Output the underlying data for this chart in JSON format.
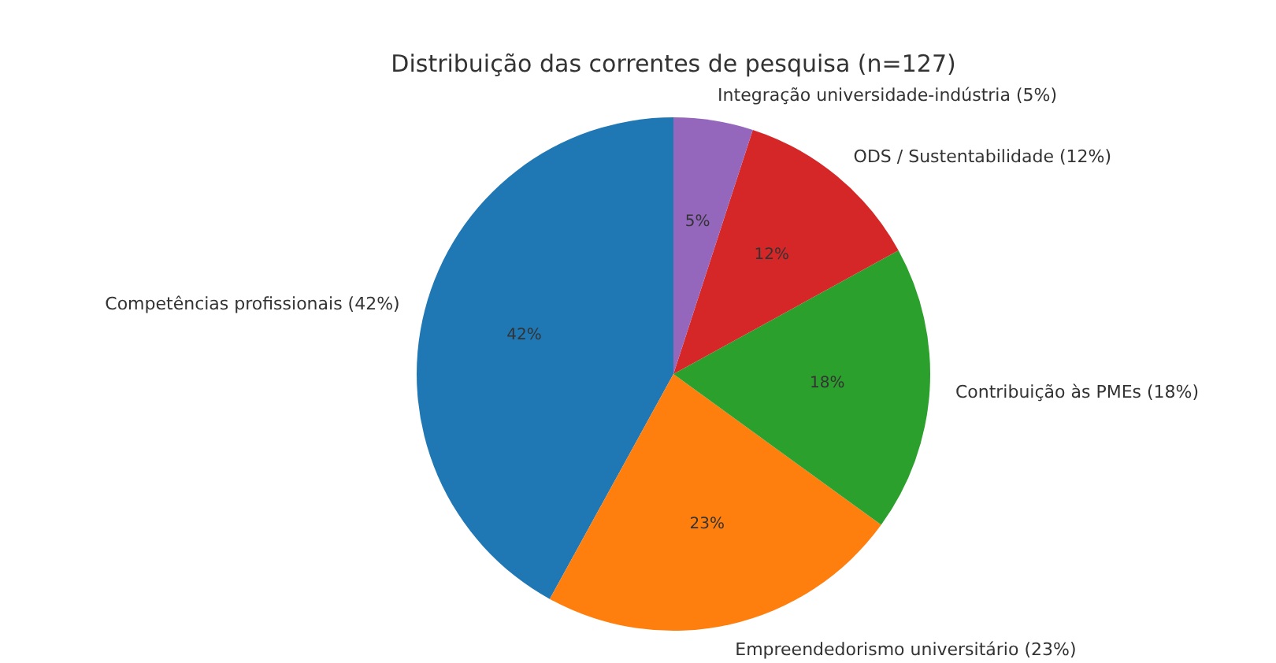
{
  "chart_data": {
    "type": "pie",
    "title": "Distribuição das correntes de pesquisa (n=127)",
    "categories": [
      "Competências profissionais (42%)",
      "Empreendedorismo universitário (23%)",
      "Contribuição às PMEs (18%)",
      "ODS / Sustentabilidade (12%)",
      "Integração universidade-indústria (5%)"
    ],
    "values": [
      42,
      23,
      18,
      12,
      5
    ],
    "colors": [
      "#1f77b4",
      "#ff7f0e",
      "#2ca02c",
      "#d62728",
      "#9467bd"
    ],
    "value_labels": [
      "42%",
      "23%",
      "18%",
      "12%",
      "5%"
    ]
  }
}
